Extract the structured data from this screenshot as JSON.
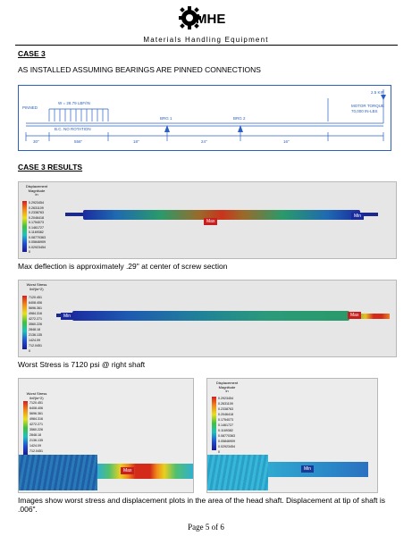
{
  "header": {
    "logo_text": "MHE",
    "company": "Materials Handling Equipment"
  },
  "case_title": "CASE 3",
  "case_subtitle": "AS INSTALLED ASSUMING BEARINGS ARE PINNED CONNECTIONS",
  "diagram": {
    "pinned": "PINNED",
    "load": "W = 28.79 LBF/IN",
    "bc": "B.C. NO ROTATION",
    "brg1": "BRG 1",
    "brg2": "BRG 2",
    "motor": "MOTOR TORQUE",
    "motor_value": "70,000 IN-LBS",
    "kip": "2.5 KIP",
    "dims": [
      "30\"",
      "556\"",
      "18\"",
      "24\"",
      "16\""
    ]
  },
  "results_title": "CASE 3 RESULTS",
  "displacement_legend": {
    "title": [
      "Displacement",
      "Magnitude",
      "in"
    ],
    "values": [
      "0.2923454",
      "0.2631109",
      "0.2338763",
      "0.2046418",
      "0.1754073",
      "0.1461727",
      "0.1169382",
      "0.08770363",
      "0.05846909",
      "0.02923454",
      "0"
    ]
  },
  "stress_legend": {
    "title": [
      "Worst Stress",
      "lbf/(in^2)"
    ],
    "values": [
      "7120.451",
      "6408.406",
      "5696.361",
      "4984.316",
      "4272.271",
      "3560.226",
      "2848.18",
      "2136.135",
      "1424.09",
      "712.0451",
      "0"
    ]
  },
  "plot_tags": {
    "max": "Max",
    "min": "Min"
  },
  "captions": {
    "deflection": "Max deflection is approximately .29\" at center of screw section",
    "stress": "Worst Stress is 7120 psi @ right shaft",
    "head": "Images show worst stress and displacement plots in the area of the head shaft. Displacement at tip of shaft is .006\"."
  },
  "footer": "Page 5 of 6"
}
